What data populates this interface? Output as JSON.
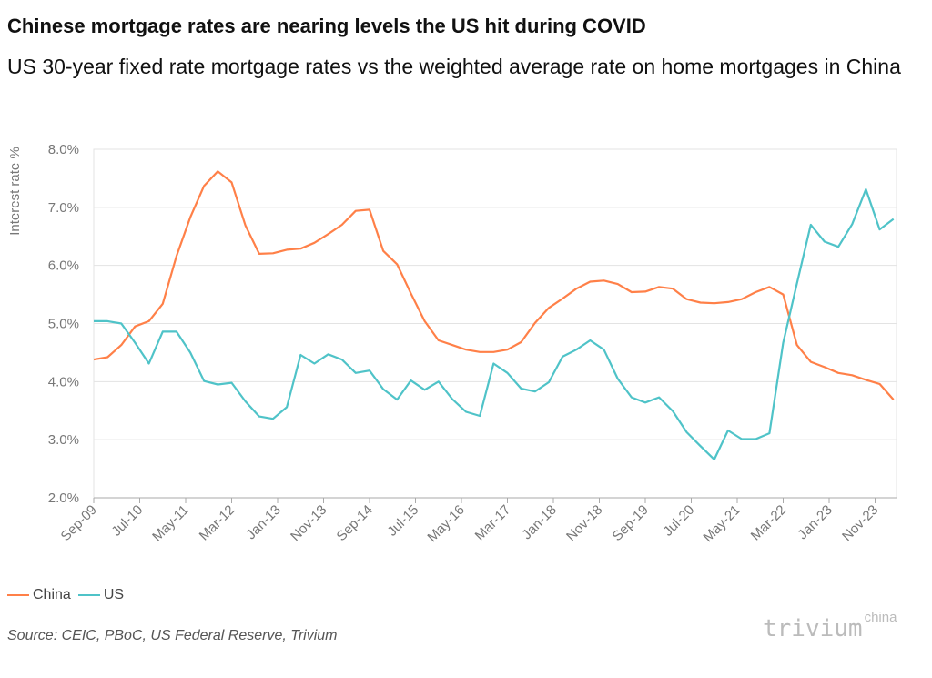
{
  "header": {
    "title": "Chinese mortgage rates are nearing levels the US hit during COVID",
    "subtitle": "US 30-year fixed rate mortgage rates vs the weighted average rate on home mortgages in China"
  },
  "footer": {
    "source": "Source: CEIC, PBoC, US Federal Reserve, Trivium",
    "logo_main": "trivium",
    "logo_sup": "china"
  },
  "chart_data": {
    "type": "line",
    "title": "",
    "xlabel": "",
    "ylabel": "Interest rate %",
    "ylim": [
      2.0,
      8.0
    ],
    "yticks": [
      "2.0%",
      "3.0%",
      "4.0%",
      "5.0%",
      "6.0%",
      "7.0%",
      "8.0%"
    ],
    "xticks": [
      "Sep-09",
      "Jul-10",
      "May-11",
      "Mar-12",
      "Jan-13",
      "Nov-13",
      "Sep-14",
      "Jul-15",
      "May-16",
      "Mar-17",
      "Jan-18",
      "Nov-18",
      "Sep-19",
      "Jul-20",
      "May-21",
      "Mar-22",
      "Jan-23",
      "Nov-23"
    ],
    "grid": "horizontal",
    "legend": "bottom-left",
    "x": [
      "2009-09",
      "2009-12",
      "2010-03",
      "2010-06",
      "2010-09",
      "2010-12",
      "2011-03",
      "2011-06",
      "2011-09",
      "2011-12",
      "2012-03",
      "2012-06",
      "2012-09",
      "2012-12",
      "2013-03",
      "2013-06",
      "2013-09",
      "2013-12",
      "2014-03",
      "2014-06",
      "2014-09",
      "2014-12",
      "2015-03",
      "2015-06",
      "2015-09",
      "2015-12",
      "2016-03",
      "2016-06",
      "2016-09",
      "2016-12",
      "2017-03",
      "2017-06",
      "2017-09",
      "2017-12",
      "2018-03",
      "2018-06",
      "2018-09",
      "2018-12",
      "2019-03",
      "2019-06",
      "2019-09",
      "2019-12",
      "2020-03",
      "2020-06",
      "2020-09",
      "2020-12",
      "2021-03",
      "2021-06",
      "2021-09",
      "2021-12",
      "2022-03",
      "2022-06",
      "2022-09",
      "2022-12",
      "2023-03",
      "2023-06",
      "2023-09",
      "2023-12",
      "2024-03"
    ],
    "series": [
      {
        "name": "China",
        "color": "#FF8048",
        "values": [
          4.38,
          4.42,
          4.63,
          4.95,
          5.04,
          5.34,
          6.16,
          6.83,
          7.37,
          7.62,
          7.43,
          6.69,
          6.2,
          6.21,
          6.27,
          6.29,
          6.39,
          6.54,
          6.7,
          6.94,
          6.96,
          6.25,
          6.02,
          5.52,
          5.04,
          4.71,
          4.63,
          4.55,
          4.51,
          4.51,
          4.55,
          4.68,
          5.01,
          5.27,
          5.43,
          5.6,
          5.72,
          5.74,
          5.68,
          5.54,
          5.55,
          5.63,
          5.6,
          5.42,
          5.36,
          5.35,
          5.37,
          5.42,
          5.54,
          5.63,
          5.5,
          4.63,
          4.34,
          4.25,
          4.15,
          4.11,
          4.03,
          3.96,
          3.69
        ]
      },
      {
        "name": "US",
        "color": "#4FC3C8",
        "values": [
          5.04,
          5.04,
          5.0,
          4.67,
          4.31,
          4.86,
          4.86,
          4.5,
          4.01,
          3.95,
          3.98,
          3.66,
          3.4,
          3.36,
          3.56,
          4.46,
          4.31,
          4.47,
          4.38,
          4.15,
          4.19,
          3.87,
          3.69,
          4.02,
          3.86,
          4.0,
          3.7,
          3.48,
          3.41,
          4.31,
          4.15,
          3.88,
          3.83,
          3.99,
          4.43,
          4.55,
          4.71,
          4.55,
          4.05,
          3.73,
          3.64,
          3.73,
          3.49,
          3.13,
          2.89,
          2.66,
          3.16,
          3.01,
          3.01,
          3.11,
          4.67,
          5.69,
          6.7,
          6.41,
          6.32,
          6.71,
          7.31,
          6.62,
          6.8
        ]
      }
    ]
  }
}
